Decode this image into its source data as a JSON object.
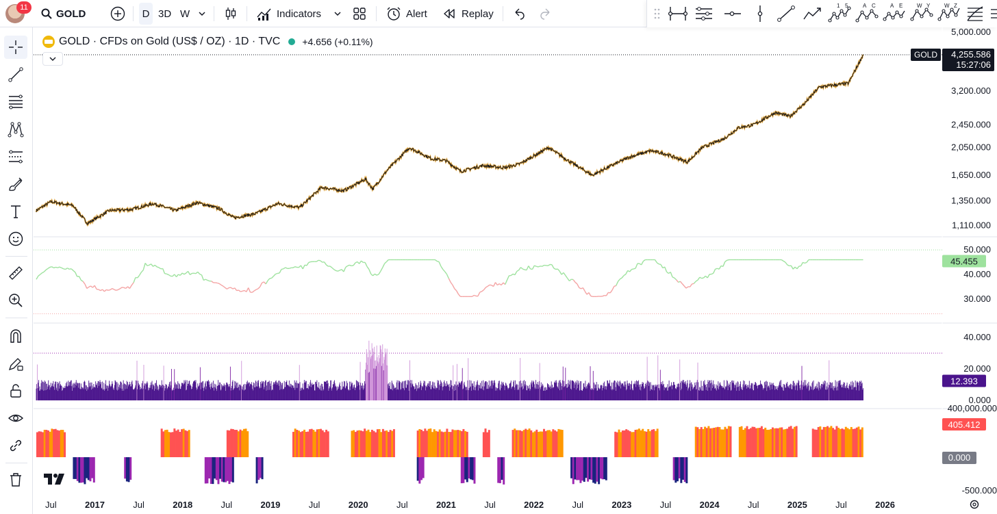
{
  "toolbar": {
    "notification_count": "11",
    "symbol": "GOLD",
    "intervals": [
      "D",
      "3D",
      "W"
    ],
    "active_interval": "D",
    "indicators_label": "Indicators",
    "alert_label": "Alert",
    "replay_label": "Replay"
  },
  "legend": {
    "title": "GOLD · CFDs on Gold (US$ / OZ) · 1D · TVC",
    "change": "+4.656 (+0.11%)"
  },
  "price_axis": {
    "ticks": [
      "5,000.000",
      "3,200.000",
      "2,450.000",
      "2,050.000",
      "1,650.000",
      "1,350.000",
      "1,110.000"
    ],
    "symbol_tag": "GOLD",
    "last_price": "4,255.586",
    "countdown": "15:27:06"
  },
  "rsi_axis": {
    "ticks": [
      "50.000",
      "40.000",
      "30.000"
    ],
    "value": "45.455"
  },
  "vol_axis": {
    "ticks": [
      "40.000",
      "20.000",
      "0.000"
    ],
    "value": "12.393"
  },
  "osc_axis": {
    "ticks": [
      "400,000.000",
      "-500.000"
    ],
    "value": "405.412",
    "zero": "0.000"
  },
  "time_axis": [
    "Jul",
    "2017",
    "Jul",
    "2018",
    "Jul",
    "2019",
    "Jul",
    "2020",
    "Jul",
    "2021",
    "Jul",
    "2022",
    "Jul",
    "2023",
    "Jul",
    "2024",
    "Jul",
    "2025",
    "Jul",
    "2026"
  ],
  "colors": {
    "candle_up": "#e0a030",
    "candle_down": "#131722",
    "rsi_up": "#9ee29e",
    "rsi_down": "#f4a3a3",
    "volatility": "#4a148c",
    "osc_orange": "#ff9800",
    "osc_red": "#ff5252",
    "osc_purple": "#9c27b0",
    "osc_navy": "#1a237e"
  },
  "chart_data": {
    "type": "line",
    "title": "GOLD · CFDs on Gold (US$ / OZ) · 1D · TVC",
    "y_scale": "log",
    "series": [
      {
        "name": "GOLD",
        "x": [
          "2016-05",
          "2016-07",
          "2016-10",
          "2016-12",
          "2017-03",
          "2017-06",
          "2017-09",
          "2017-12",
          "2018-03",
          "2018-06",
          "2018-08",
          "2018-11",
          "2019-02",
          "2019-05",
          "2019-08",
          "2019-11",
          "2020-02",
          "2020-03",
          "2020-05",
          "2020-08",
          "2020-11",
          "2021-01",
          "2021-03",
          "2021-06",
          "2021-09",
          "2021-11",
          "2022-03",
          "2022-06",
          "2022-09",
          "2022-11",
          "2023-02",
          "2023-05",
          "2023-07",
          "2023-10",
          "2023-12",
          "2024-03",
          "2024-05",
          "2024-07",
          "2024-10",
          "2024-12",
          "2025-02",
          "2025-04",
          "2025-06",
          "2025-08",
          "2025-10"
        ],
        "values": [
          1250,
          1340,
          1300,
          1130,
          1250,
          1260,
          1320,
          1250,
          1330,
          1270,
          1180,
          1220,
          1320,
          1280,
          1500,
          1460,
          1600,
          1480,
          1720,
          2050,
          1880,
          1850,
          1700,
          1780,
          1750,
          1800,
          2050,
          1830,
          1650,
          1750,
          1900,
          2000,
          1950,
          1830,
          2050,
          2200,
          2400,
          2450,
          2700,
          2620,
          2900,
          3300,
          3350,
          3400,
          4255
        ]
      }
    ],
    "ylim": [
      1050,
      5000
    ],
    "last_value": 4255.586,
    "indicators": {
      "rsi_last": 45.455,
      "volatility_last": 12.393,
      "oscillator_last": 405.412
    }
  }
}
